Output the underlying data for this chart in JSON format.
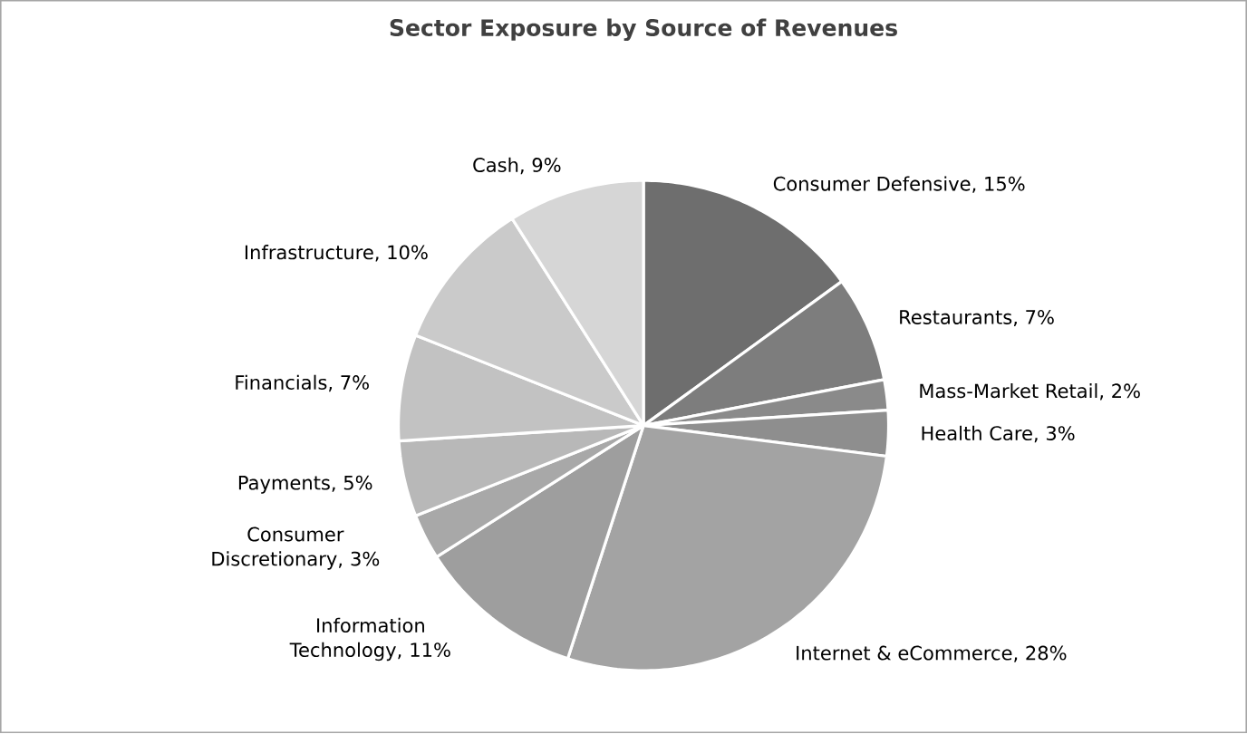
{
  "chart_data": {
    "type": "pie",
    "title": "Sector Exposure by Source of Revenues",
    "categories": [
      "Consumer Defensive, 15%",
      "Restaurants, 7%",
      "Mass-Market Retail, 2%",
      "Health Care, 3%",
      "Internet & eCommerce, 28%",
      "Information Technology, 11%",
      "Consumer Discretionary, 3%",
      "Payments, 5%",
      "Financials, 7%",
      "Infrastructure, 10%",
      "Cash, 9%"
    ],
    "values": [
      15,
      7,
      2,
      3,
      28,
      11,
      3,
      5,
      7,
      10,
      9
    ],
    "colors": [
      "#6e6e6e",
      "#7d7d7d",
      "#8a8a8a",
      "#8e8e8e",
      "#a3a3a3",
      "#9e9e9e",
      "#a8a8a8",
      "#b8b8b8",
      "#c2c2c2",
      "#cacaca",
      "#d6d6d6"
    ]
  }
}
